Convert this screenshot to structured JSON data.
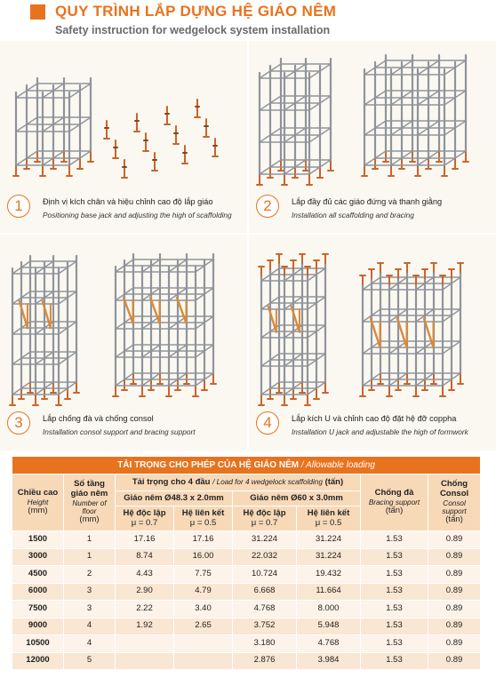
{
  "header": {
    "title": "QUY TRÌNH LẮP DỰNG HỆ GIÁO NÊM",
    "subtitle": "Safety instruction for wedgelock system installation"
  },
  "steps": [
    {
      "number": "1",
      "vi": "Định vị kích chân và hiệu chỉnh cao độ lắp giáo",
      "en": "Positioning base jack and adjusting the high of scaffolding"
    },
    {
      "number": "2",
      "vi": "Lắp đầy đủ các giáo đứng và thanh giằng",
      "en": "Installation all scaffolding and bracing"
    },
    {
      "number": "3",
      "vi": "Lắp chống đà và chống consol",
      "en": "Installation consol support and bracing support"
    },
    {
      "number": "4",
      "vi": "Lắp kích U và chỉnh cao độ đặt hệ đỡ coppha",
      "en": "Installation U jack and adjustable the high of formwork"
    }
  ],
  "table": {
    "caption_vi": "TẢI TRỌNG CHO PHÉP CỦA HỆ GIÁO NÊM",
    "caption_en": "/ Allowable loading",
    "col_height": {
      "vi": "Chiều cao",
      "en": "Height",
      "unit": "(mm)"
    },
    "col_floors": {
      "vi": "Số tầng giáo nêm",
      "en": "Number of floor",
      "unit": "(mm)"
    },
    "col_load": {
      "vi": "Tải trọng cho 4 đầu",
      "en": "/ Load for 4 wedgelock scaffolding",
      "unit": "(tấn)"
    },
    "group_a": "Giáo nêm Ø48.3 x 2.0mm",
    "group_b": "Giáo nêm Ø60 x 3.0mm",
    "sub_independent": "Hệ độc lập",
    "sub_linked": "Hệ liên kết",
    "mu_07": "μ = 0.7",
    "mu_05": "μ = 0.5",
    "col_bracing": {
      "vi": "Chống đà",
      "en": "Bracing support",
      "unit": "(tấn)"
    },
    "col_consol": {
      "vi": "Chống Consol",
      "en": "Consol support",
      "unit": "(tấn)"
    },
    "rows": [
      {
        "h": "1500",
        "f": "1",
        "a1": "17.16",
        "a2": "17.16",
        "b1": "31.224",
        "b2": "31.224",
        "br": "1.53",
        "cs": "0.89"
      },
      {
        "h": "3000",
        "f": "1",
        "a1": "8.74",
        "a2": "16.00",
        "b1": "22.032",
        "b2": "31.224",
        "br": "1.53",
        "cs": "0.89"
      },
      {
        "h": "4500",
        "f": "2",
        "a1": "4.43",
        "a2": "7.75",
        "b1": "10.724",
        "b2": "19.432",
        "br": "1.53",
        "cs": "0.89"
      },
      {
        "h": "6000",
        "f": "3",
        "a1": "2.90",
        "a2": "4.79",
        "b1": "6.668",
        "b2": "11.664",
        "br": "1.53",
        "cs": "0.89"
      },
      {
        "h": "7500",
        "f": "3",
        "a1": "2.22",
        "a2": "3.40",
        "b1": "4.768",
        "b2": "8.000",
        "br": "1.53",
        "cs": "0.89"
      },
      {
        "h": "9000",
        "f": "4",
        "a1": "1.92",
        "a2": "2.65",
        "b1": "3.752",
        "b2": "5.948",
        "br": "1.53",
        "cs": "0.89"
      },
      {
        "h": "10500",
        "f": "4",
        "a1": "",
        "a2": "",
        "b1": "3.180",
        "b2": "4.768",
        "br": "1.53",
        "cs": "0.89"
      },
      {
        "h": "12000",
        "f": "5",
        "a1": "",
        "a2": "",
        "b1": "2.876",
        "b2": "3.984",
        "br": "1.53",
        "cs": "0.89"
      }
    ]
  },
  "colors": {
    "accent": "#e8731e",
    "pipe": "#8f949b",
    "jack": "#c9652a",
    "brace": "#d98a3a",
    "header_fill": "#f7d9b8",
    "row_fill": "#fdf3e9"
  },
  "illustrations": {
    "p1": {
      "left": [
        {
          "floors": 2
        }
      ],
      "right": [
        {
          "jacks": "base-jacks-grid"
        }
      ]
    },
    "p2": {
      "left": [
        {
          "floors": 3
        }
      ],
      "right": [
        {
          "floors": 3
        }
      ]
    },
    "p3": {
      "left": [
        {
          "floors": 4,
          "consol": true
        }
      ],
      "right": [
        {
          "floors": 4,
          "consol": true
        }
      ]
    },
    "p4": {
      "left": [
        {
          "floors": 4,
          "consol": true,
          "ujack": true
        }
      ],
      "right": [
        {
          "floors": 3,
          "consol": true,
          "ujack": true
        }
      ]
    }
  }
}
